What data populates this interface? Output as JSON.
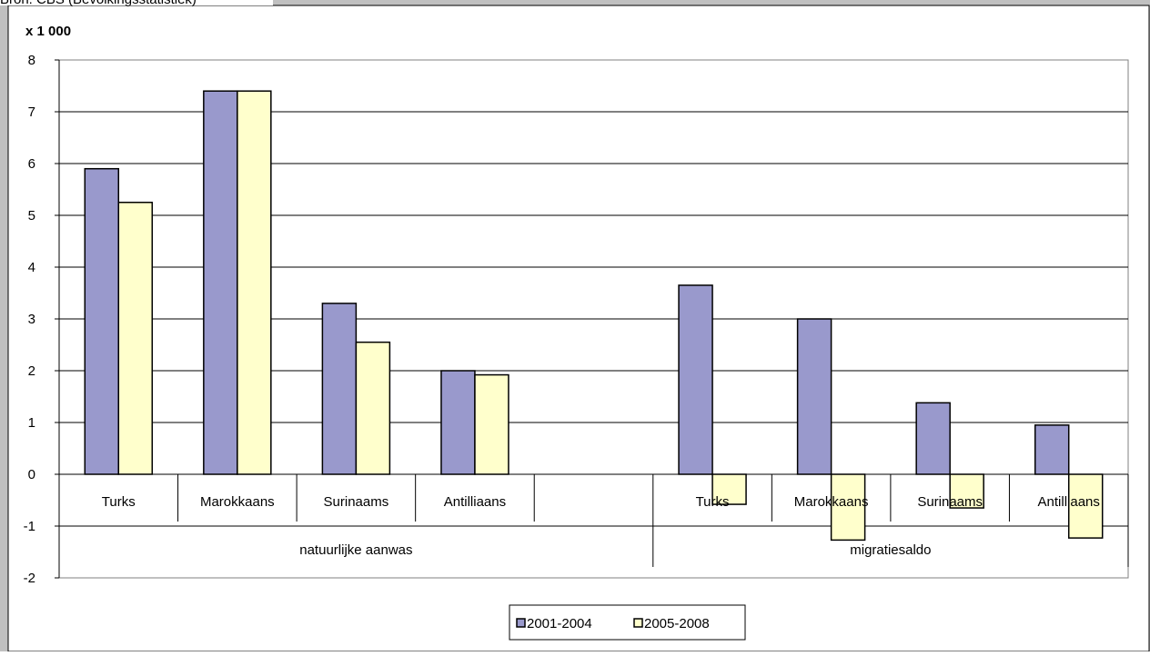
{
  "header": {
    "clipped_title": "Bron: CBS (Bevolkingsstatistiek)"
  },
  "chart_data": {
    "type": "bar",
    "unit_label": "x 1 000",
    "ylim": [
      -2,
      8
    ],
    "yticks": [
      -2,
      -1,
      0,
      1,
      2,
      3,
      4,
      5,
      6,
      7,
      8
    ],
    "grid": true,
    "legend_position": "bottom",
    "groups": [
      {
        "label": "natuurlijke aanwas",
        "categories": [
          "Turks",
          "Marokkaans",
          "Surinaams",
          "Antilliaans",
          ""
        ]
      },
      {
        "label": "migratiesaldo",
        "categories": [
          "Turks",
          "Marokkaans",
          "Surinaams",
          "Antilliaans"
        ]
      }
    ],
    "categories": [
      "Turks",
      "Marokkaans",
      "Surinaams",
      "Antilliaans",
      "",
      "Turks",
      "Marokkaans",
      "Surinaams",
      "Antilliaans"
    ],
    "series": [
      {
        "name": "2001-2004",
        "color": "#9999cc",
        "values": [
          5.9,
          7.4,
          3.3,
          2.0,
          null,
          3.65,
          3.0,
          1.38,
          0.95
        ]
      },
      {
        "name": "2005-2008",
        "color": "#ffffcc",
        "values": [
          5.25,
          7.4,
          2.55,
          1.92,
          null,
          -0.58,
          -1.27,
          -0.65,
          -1.23
        ]
      }
    ]
  }
}
